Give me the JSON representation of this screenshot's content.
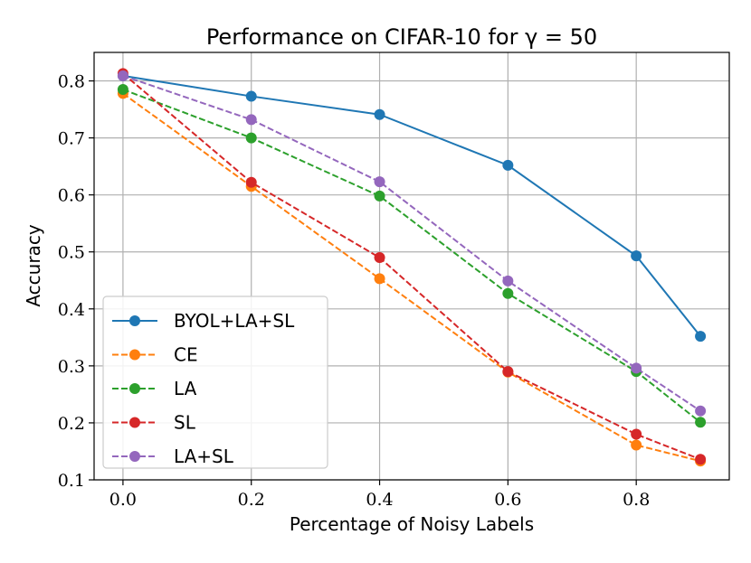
{
  "chart_data": {
    "type": "line",
    "title": "Performance on CIFAR-10 for γ = 50",
    "xlabel": "Percentage of Noisy Labels",
    "ylabel": "Accuracy",
    "xlim": [
      -0.045,
      0.945
    ],
    "ylim": [
      0.1,
      0.85
    ],
    "xticks": [
      0.0,
      0.2,
      0.4,
      0.6,
      0.8
    ],
    "xtick_labels": [
      "0.0",
      "0.2",
      "0.4",
      "0.6",
      "0.8"
    ],
    "yticks": [
      0.1,
      0.2,
      0.3,
      0.4,
      0.5,
      0.6,
      0.7,
      0.8
    ],
    "ytick_labels": [
      "0.1",
      "0.2",
      "0.3",
      "0.4",
      "0.5",
      "0.6",
      "0.7",
      "0.8"
    ],
    "grid": true,
    "legend_position": "lower-left",
    "x": [
      0.0,
      0.2,
      0.4,
      0.6,
      0.8,
      0.9
    ],
    "series": [
      {
        "name": "BYOL+LA+SL",
        "color": "#1f77b4",
        "dashed": false,
        "values": [
          0.809,
          0.773,
          0.741,
          0.652,
          0.493,
          0.352
        ]
      },
      {
        "name": "CE",
        "color": "#ff7f0e",
        "dashed": true,
        "values": [
          0.778,
          0.615,
          0.453,
          0.289,
          0.161,
          0.133
        ]
      },
      {
        "name": "LA",
        "color": "#2ca02c",
        "dashed": true,
        "values": [
          0.785,
          0.7,
          0.598,
          0.427,
          0.29,
          0.201
        ]
      },
      {
        "name": "SL",
        "color": "#d62728",
        "dashed": true,
        "values": [
          0.813,
          0.622,
          0.49,
          0.29,
          0.18,
          0.136
        ]
      },
      {
        "name": "LA+SL",
        "color": "#9467bd",
        "dashed": true,
        "values": [
          0.809,
          0.732,
          0.623,
          0.449,
          0.296,
          0.221
        ]
      }
    ]
  }
}
